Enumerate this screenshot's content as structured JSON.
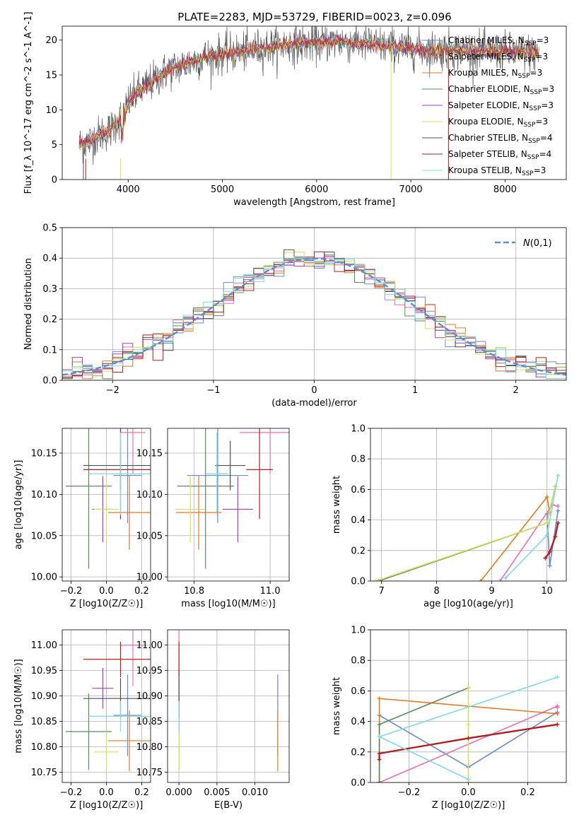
{
  "chart_data": [
    {
      "type": "line",
      "title": "PLATE=2283, MJD=53729, FIBERID=0023, z=0.096",
      "xlabel": "wavelength [Angstrom, rest frame]",
      "ylabel": "Flux [f_λ 10^-17 erg cm^-2 s^-1 A^-1]",
      "xlim": [
        3300,
        8650
      ],
      "ylim": [
        0,
        22
      ],
      "xticks": [
        4000,
        5000,
        6000,
        7000,
        8000
      ],
      "yticks": [
        0,
        5,
        10,
        15,
        20
      ],
      "grid": false,
      "legend_position": "upper-right",
      "wavelength_range": [
        3480,
        8360
      ],
      "continuum_x": [
        3480,
        3600,
        3700,
        3800,
        3900,
        4000,
        4100,
        4200,
        4300,
        4400,
        4600,
        4800,
        5000,
        5200,
        5400,
        5600,
        5800,
        6000,
        6200,
        6400,
        6600,
        6800,
        7000,
        7200,
        7400,
        7600,
        7800,
        8000,
        8200,
        8360
      ],
      "continuum_y": [
        5,
        5.5,
        6.5,
        7,
        8.5,
        11,
        12.5,
        13.5,
        14.5,
        15.5,
        16.5,
        17.5,
        18,
        18.3,
        18.8,
        19.2,
        19.5,
        19.6,
        19.8,
        19.6,
        19.4,
        19.0,
        18.8,
        18.6,
        18.6,
        18.5,
        18.4,
        18.3,
        18.2,
        18.1
      ],
      "series": [
        {
          "name": "Chabrier MILES, N_SSP=3",
          "color": "#6a88d0"
        },
        {
          "name": "Salpeter MILES, N_SSP=3",
          "color": "#e86fb3"
        },
        {
          "name": "Kroupa MILES, N_SSP=3",
          "color": "#e07b22"
        },
        {
          "name": "Chabrier ELODIE, N_SSP=3",
          "color": "#5c8a5c"
        },
        {
          "name": "Salpeter ELODIE, N_SSP=3",
          "color": "#a040c0"
        },
        {
          "name": "Kroupa ELODIE, N_SSP=3",
          "color": "#d4e060"
        },
        {
          "name": "Chabrier STELIB, N_SSP=4",
          "color": "#505050"
        },
        {
          "name": "Salpeter STELIB, N_SSP=4",
          "color": "#b02020"
        },
        {
          "name": "Kroupa STELIB, N_SSP=3",
          "color": "#7edcdc"
        }
      ]
    },
    {
      "type": "line",
      "xlabel": "(data-model)/error",
      "ylabel": "Normed distribution",
      "xlim": [
        -2.5,
        2.5
      ],
      "ylim": [
        0,
        0.5
      ],
      "xticks": [
        -2,
        -1,
        0,
        1,
        2
      ],
      "yticks": [
        0.0,
        0.1,
        0.2,
        0.3,
        0.4,
        0.5
      ],
      "grid": true,
      "legend_position": "upper-right",
      "series": [
        {
          "name": "N(0,1)",
          "color": "#5b8fd6",
          "style": "dashed",
          "mean": 0,
          "sigma": 1
        }
      ]
    },
    {
      "type": "scatter",
      "xlabel": "Z [log10(Z/Z☉)]",
      "ylabel": "age [log10(age/yr)]",
      "xlim": [
        -0.25,
        0.25
      ],
      "ylim": [
        9.995,
        10.18
      ],
      "xticks": [
        -0.2,
        0.0,
        0.2
      ],
      "yticks": [
        10.0,
        10.05,
        10.1,
        10.15
      ],
      "grid": true
    },
    {
      "type": "scatter",
      "xlabel": "mass [log10(M/M☉)]",
      "ylabel": "",
      "xlim": [
        10.73,
        11.05
      ],
      "ylim": [
        9.995,
        10.18
      ],
      "xticks": [
        10.8,
        11.0
      ],
      "yticks": [
        10.0,
        10.05,
        10.1,
        10.15
      ],
      "grid": true
    },
    {
      "type": "line",
      "xlabel": "age [log10(age/yr)]",
      "ylabel": "mass weight",
      "xlim": [
        6.8,
        10.35
      ],
      "ylim": [
        0,
        1
      ],
      "xticks": [
        7,
        8,
        9,
        10
      ],
      "yticks": [
        0.0,
        0.2,
        0.4,
        0.6,
        0.8,
        1.0
      ],
      "grid": true
    },
    {
      "type": "scatter",
      "xlabel": "Z [log10(Z/Z☉)]",
      "ylabel": "mass [log10(M/M☉)]",
      "xlim": [
        -0.25,
        0.25
      ],
      "ylim": [
        10.73,
        11.03
      ],
      "xticks": [
        -0.2,
        0.0,
        0.2
      ],
      "yticks": [
        10.75,
        10.8,
        10.85,
        10.9,
        10.95,
        11.0
      ],
      "grid": true
    },
    {
      "type": "scatter",
      "xlabel": "E(B-V)",
      "ylabel": "",
      "xlim": [
        -0.0015,
        0.0145
      ],
      "ylim": [
        10.73,
        11.03
      ],
      "xticks": [
        0.0,
        0.005,
        0.01
      ],
      "yticks": [
        10.75,
        10.8,
        10.85,
        10.9,
        10.95,
        11.0
      ],
      "grid": true
    },
    {
      "type": "line",
      "xlabel": "Z [log10(Z/Z☉)]",
      "ylabel": "mass weight",
      "xlim": [
        -0.33,
        0.33
      ],
      "ylim": [
        0,
        1
      ],
      "xticks": [
        -0.2,
        0.0,
        0.2
      ],
      "yticks": [
        0.0,
        0.2,
        0.4,
        0.6,
        0.8,
        1.0
      ],
      "grid": true
    }
  ],
  "models": [
    {
      "name": "Chabrier MILES",
      "color": "#6a88d0",
      "Z": 0.12,
      "Zerr": 0.08,
      "age": 10.123,
      "ageerr": 0.058,
      "mass": 10.862,
      "masserr": 0.08,
      "ebv": 0.013,
      "ssp": [
        {
          "age": 10.0,
          "Z": -0.3,
          "w": 0.44
        },
        {
          "age": 10.05,
          "Z": 0.0,
          "w": 0.1
        },
        {
          "age": 10.2,
          "Z": 0.3,
          "w": 0.46
        }
      ]
    },
    {
      "name": "Salpeter MILES",
      "color": "#e86fb3",
      "Z": 0.15,
      "Zerr": 0.07,
      "age": 10.175,
      "ageerr": 0.05,
      "mass": 11.0,
      "masserr": 0.08,
      "ebv": 0.0,
      "ssp": [
        {
          "age": 9.15,
          "Z": -0.3,
          "w": 0.0
        },
        {
          "age": 10.1,
          "Z": 0.3,
          "w": 0.5
        },
        {
          "age": 10.2,
          "Z": 0.3,
          "w": 0.49
        }
      ]
    },
    {
      "name": "Kroupa MILES",
      "color": "#e07b22",
      "Z": 0.13,
      "Zerr": 0.12,
      "age": 10.078,
      "ageerr": 0.045,
      "mass": 10.812,
      "masserr": 0.06,
      "ebv": 0.013,
      "ssp": [
        {
          "age": 8.8,
          "Z": -0.3,
          "w": 0.0
        },
        {
          "age": 10.0,
          "Z": -0.3,
          "w": 0.55
        },
        {
          "age": 10.05,
          "Z": 0.3,
          "w": 0.45
        }
      ]
    },
    {
      "name": "Chabrier ELODIE",
      "color": "#5c8a5c",
      "Z": -0.1,
      "Zerr": 0.13,
      "age": 10.11,
      "ageerr": 0.1,
      "mass": 10.83,
      "masserr": 0.075,
      "ebv": 0.0,
      "ssp": [
        {
          "age": 6.95,
          "Z": -0.3,
          "w": 0.0
        },
        {
          "age": 10.0,
          "Z": -0.3,
          "w": 0.38
        },
        {
          "age": 10.15,
          "Z": 0.0,
          "w": 0.62
        }
      ]
    },
    {
      "name": "Salpeter ELODIE",
      "color": "#a040c0",
      "Z": -0.02,
      "Zerr": 0.06,
      "age": 10.082,
      "ageerr": 0.04,
      "mass": 10.915,
      "masserr": 0.04,
      "ebv": 0.0,
      "ssp": []
    },
    {
      "name": "Kroupa ELODIE",
      "color": "#d4e060",
      "Z": 0.0,
      "Zerr": 0.07,
      "age": 10.082,
      "ageerr": 0.04,
      "mass": 10.79,
      "masserr": 0.04,
      "ebv": 0.0,
      "ssp": [
        {
          "age": 6.9,
          "Z": 0.0,
          "w": 0.0
        },
        {
          "age": 10.0,
          "Z": 0.0,
          "w": 0.38
        },
        {
          "age": 10.15,
          "Z": 0.0,
          "w": 0.62
        }
      ]
    },
    {
      "name": "Chabrier STELIB",
      "color": "#505050",
      "Z": 0.08,
      "Zerr": 0.21,
      "age": 10.135,
      "ageerr": 0.03,
      "mass": 10.895,
      "masserr": 0.04,
      "ebv": 0.0,
      "ssp": []
    },
    {
      "name": "Salpeter STELIB",
      "color": "#b02020",
      "Z": 0.08,
      "Zerr": 0.21,
      "age": 10.13,
      "ageerr": 0.06,
      "mass": 10.972,
      "masserr": 0.035,
      "ebv": 0.0,
      "ssp": [
        {
          "age": 9.97,
          "Z": -0.3,
          "w": 0.15
        },
        {
          "age": 10.05,
          "Z": -0.3,
          "w": 0.19
        },
        {
          "age": 10.15,
          "Z": 0.0,
          "w": 0.29
        },
        {
          "age": 10.2,
          "Z": 0.3,
          "w": 0.38
        }
      ]
    },
    {
      "name": "Kroupa STELIB",
      "color": "#7edcdc",
      "Z": 0.08,
      "Zerr": 0.18,
      "age": 10.125,
      "ageerr": 0.05,
      "mass": 10.86,
      "masserr": 0.03,
      "ebv": 0.0,
      "ssp": [
        {
          "age": 9.25,
          "Z": 0.0,
          "w": 0.02
        },
        {
          "age": 10.0,
          "Z": -0.3,
          "w": 0.3
        },
        {
          "age": 10.2,
          "Z": 0.3,
          "w": 0.69
        }
      ]
    }
  ]
}
